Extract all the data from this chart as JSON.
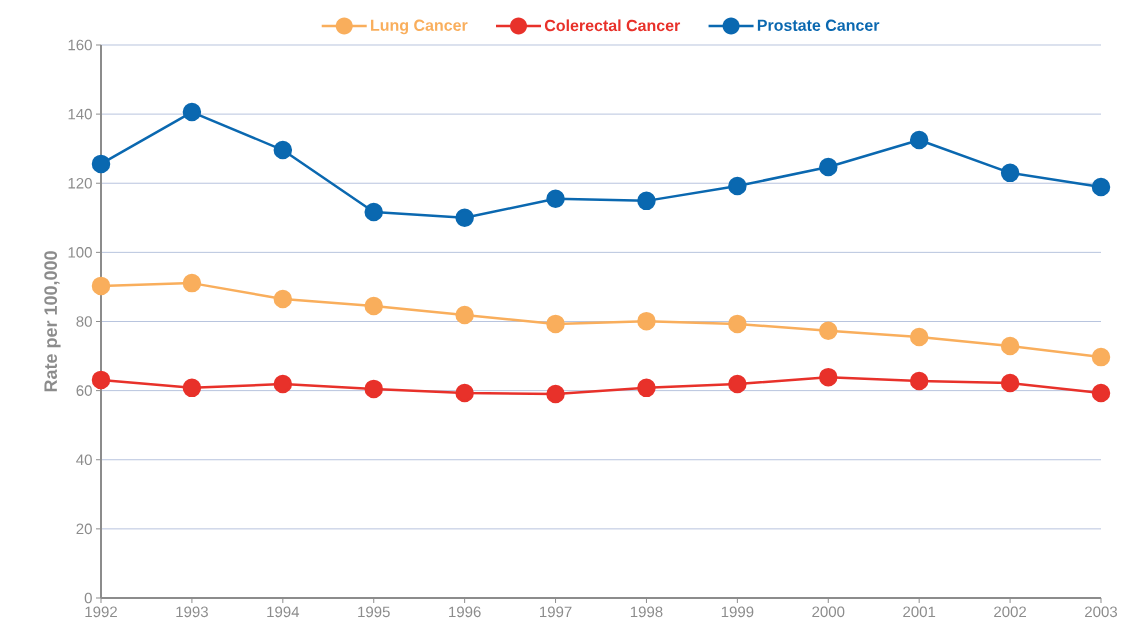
{
  "chart_data": {
    "type": "line",
    "ylabel": "Rate per 100,000",
    "x": [
      1992,
      1993,
      1994,
      1995,
      1996,
      1997,
      1998,
      1999,
      2000,
      2001,
      2002,
      2003
    ],
    "series": [
      {
        "name": "Lung Cancer",
        "color": "#f9ae5c",
        "values": [
          90.3,
          91.1,
          86.5,
          84.5,
          81.9,
          79.3,
          80.1,
          79.3,
          77.3,
          75.5,
          72.9,
          69.7
        ]
      },
      {
        "name": "Colerectal Cancer",
        "color": "#e8312a",
        "values": [
          63.1,
          60.8,
          61.9,
          60.5,
          59.3,
          59.0,
          60.8,
          61.9,
          63.9,
          62.8,
          62.2,
          59.3
        ]
      },
      {
        "name": "Prostate Cancer",
        "color": "#0a68b0",
        "values": [
          125.6,
          140.6,
          129.6,
          111.7,
          110.0,
          115.5,
          114.9,
          119.2,
          124.7,
          132.5,
          123.0,
          118.9
        ]
      }
    ],
    "xlim": [
      1992,
      2003
    ],
    "xticks": [
      1992,
      1993,
      1994,
      1995,
      1996,
      1997,
      1998,
      1999,
      2000,
      2001,
      2002,
      2003
    ],
    "ylim": [
      0,
      160
    ],
    "yticks": [
      0,
      20,
      40,
      60,
      80,
      100,
      120,
      140,
      160
    ],
    "grid": "y",
    "legend": "top",
    "marker": "circle",
    "line_style": "solid"
  }
}
